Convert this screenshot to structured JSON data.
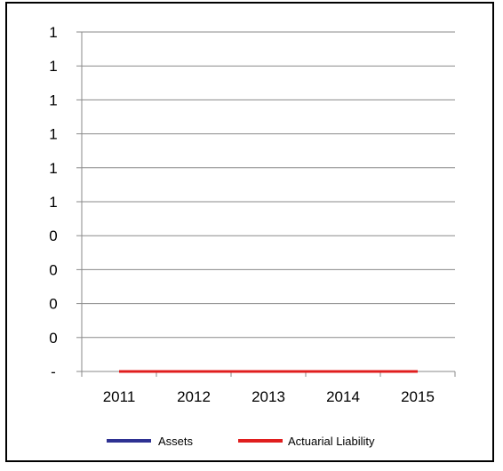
{
  "chart_data": {
    "type": "line",
    "title": "",
    "xlabel": "",
    "ylabel": "",
    "categories": [
      "2011",
      "2012",
      "2013",
      "2014",
      "2015"
    ],
    "y_tick_labels": [
      "-",
      "0",
      "0",
      "0",
      "0",
      "1",
      "1",
      "1",
      "1",
      "1",
      "1"
    ],
    "ylim": [
      0,
      1
    ],
    "grid": true,
    "legend_position": "bottom",
    "series": [
      {
        "name": "Assets",
        "color": "#2E3192",
        "values": [
          0,
          0,
          0,
          0,
          0
        ]
      },
      {
        "name": "Actuarial Liability",
        "color": "#E01E1E",
        "values": [
          0,
          0,
          0,
          0,
          0
        ]
      }
    ]
  }
}
